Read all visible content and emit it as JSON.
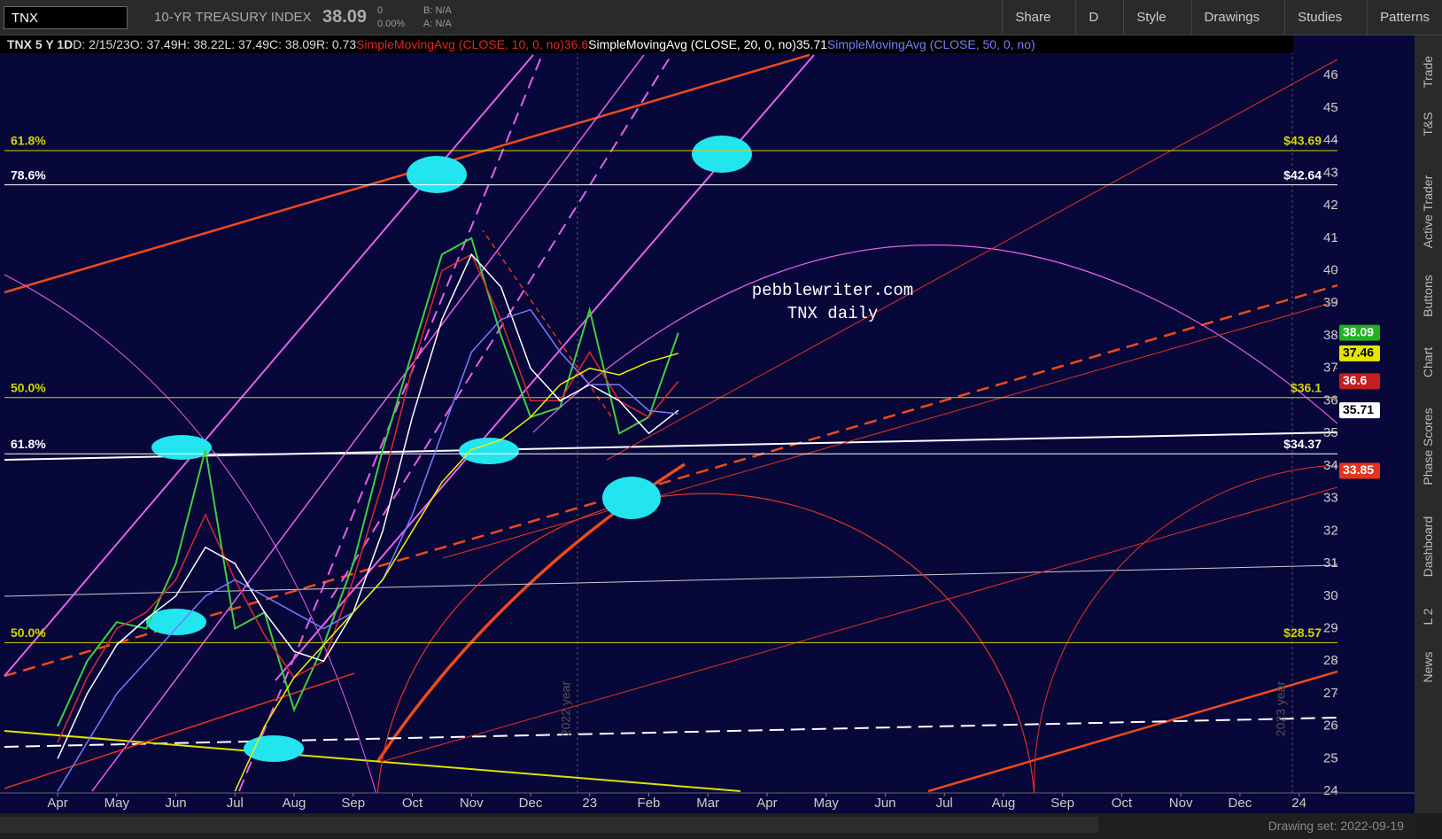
{
  "toolbar": {
    "symbol": "TNX",
    "description": "10-YR TREASURY INDEX",
    "last": "38.09",
    "change": "0",
    "change_pct": "0.00%",
    "bid": "B: N/A",
    "ask": "A: N/A",
    "buttons": [
      "Share",
      "D",
      "Style",
      "Drawings",
      "Studies",
      "Patterns"
    ]
  },
  "side_tabs": [
    "Trade",
    "T&S",
    "Active Trader",
    "Buttons",
    "Chart",
    "Phase Scores",
    "Dashboard",
    "L 2",
    "News"
  ],
  "footer": {
    "drawing_set": "Drawing set: 2022-09-19"
  },
  "chart_data": {
    "type": "line",
    "header": [
      "TNX 5 Y 1D",
      "D: 2/15/23",
      "O: 37.49",
      "H: 38.22",
      "L: 37.49",
      "C: 38.09",
      "R: 0.73"
    ],
    "annotations": [
      "pebblewriter.com",
      "TNX daily"
    ],
    "year_labels": [
      "2022 year",
      "2023 year"
    ],
    "x": [
      0,
      0.5,
      1,
      1.5,
      2,
      2.5,
      3,
      3.5,
      4,
      4.5,
      5,
      5.5,
      6,
      6.5,
      7,
      7.5,
      8,
      8.5,
      9,
      9.5,
      10,
      10.5
    ],
    "xlim": [
      -0.9,
      21.65
    ],
    "xticks": [
      {
        "value": 0,
        "label": "Apr"
      },
      {
        "value": 1,
        "label": "May"
      },
      {
        "value": 2,
        "label": "Jun"
      },
      {
        "value": 3,
        "label": "Jul"
      },
      {
        "value": 4,
        "label": "Aug"
      },
      {
        "value": 5,
        "label": "Sep"
      },
      {
        "value": 6,
        "label": "Oct"
      },
      {
        "value": 7,
        "label": "Nov"
      },
      {
        "value": 8,
        "label": "Dec"
      },
      {
        "value": 9,
        "label": "23"
      },
      {
        "value": 10,
        "label": "Feb"
      },
      {
        "value": 11,
        "label": "Mar"
      },
      {
        "value": 12,
        "label": "Apr"
      },
      {
        "value": 13,
        "label": "May"
      },
      {
        "value": 14,
        "label": "Jun"
      },
      {
        "value": 15,
        "label": "Jul"
      },
      {
        "value": 16,
        "label": "Aug"
      },
      {
        "value": 17,
        "label": "Sep"
      },
      {
        "value": 18,
        "label": "Oct"
      },
      {
        "value": 19,
        "label": "Nov"
      },
      {
        "value": 20,
        "label": "Dec"
      },
      {
        "value": 21,
        "label": "24"
      }
    ],
    "ylim": [
      23.95,
      47.23
    ],
    "yticks": [
      24,
      25,
      26,
      27,
      28,
      29,
      30,
      31,
      32,
      33,
      34,
      35,
      36,
      37,
      38,
      39,
      40,
      41,
      42,
      43,
      44,
      45,
      46
    ],
    "series": [
      {
        "color": "#3ecf3e",
        "values": [
          26,
          28,
          29.2,
          29,
          31,
          34.5,
          29,
          29.5,
          26.5,
          28.5,
          31,
          34.5,
          37.5,
          40.5,
          41,
          38,
          35.5,
          35.8,
          38.8,
          35,
          35.5,
          38.09
        ]
      },
      {
        "name": "SimpleMovingAvg (CLOSE, 10, 0, no)",
        "legend_value": 36.6,
        "color": "#e0282a",
        "values": [
          25.5,
          27.5,
          29,
          29.5,
          30.5,
          32.5,
          30.5,
          28.8,
          27.5,
          28,
          30.5,
          33.5,
          37,
          40,
          40.5,
          38.5,
          36,
          36,
          37.5,
          36,
          35.5,
          36.6
        ]
      },
      {
        "name": "SimpleMovingAvg (CLOSE, 20, 0, no)",
        "legend_value": 35.71,
        "color": "#ffffff",
        "values": [
          25,
          27,
          28.5,
          29.3,
          30,
          31.5,
          31,
          29.5,
          28.3,
          28,
          29.5,
          32,
          35.5,
          38.5,
          40.5,
          39.5,
          37,
          36,
          36.5,
          36,
          35,
          35.71
        ]
      },
      {
        "name": "SimpleMovingAvg (CLOSE, 50, 0, no)",
        "color": "#7b7bff",
        "values": [
          24,
          25.5,
          27,
          28,
          29,
          30,
          30.5,
          30,
          29.5,
          29,
          29.5,
          30.5,
          32.5,
          35,
          37.5,
          38.5,
          38.8,
          37.5,
          36.5,
          36.5,
          35.7,
          35.6
        ]
      },
      {
        "color": "#f0f000",
        "values": [
          null,
          null,
          null,
          null,
          null,
          null,
          24,
          26,
          27.5,
          28.5,
          29.5,
          30.5,
          32,
          33.5,
          34.5,
          34.8,
          35.5,
          36.5,
          37,
          36.8,
          37.2,
          37.46
        ]
      }
    ],
    "price_markers": [
      {
        "value": 38.09,
        "color": "#1db41d"
      },
      {
        "value": 37.46,
        "color": "#e6e600"
      },
      {
        "value": 36.6,
        "color": "#c41e1e"
      },
      {
        "value": 35.71,
        "color": "#ffffff"
      },
      {
        "value": 33.85,
        "color": "#e8321e"
      }
    ],
    "fib_levels": [
      {
        "label": "61.8%",
        "value": 43.69,
        "value_label": "$43.69",
        "color": "#d4d400"
      },
      {
        "label": "78.6%",
        "value": 42.64,
        "value_label": "$42.64",
        "color": "#ffffff"
      },
      {
        "label": "50.0%",
        "value": 36.1,
        "value_label": "$36.1",
        "color": "#d4d400"
      },
      {
        "label": "61.8%",
        "value": 34.37,
        "value_label": "$34.37",
        "color": "#ffffff"
      },
      {
        "label": "50.0%",
        "value": 28.57,
        "value_label": "$28.57",
        "color": "#d4d400"
      }
    ]
  }
}
